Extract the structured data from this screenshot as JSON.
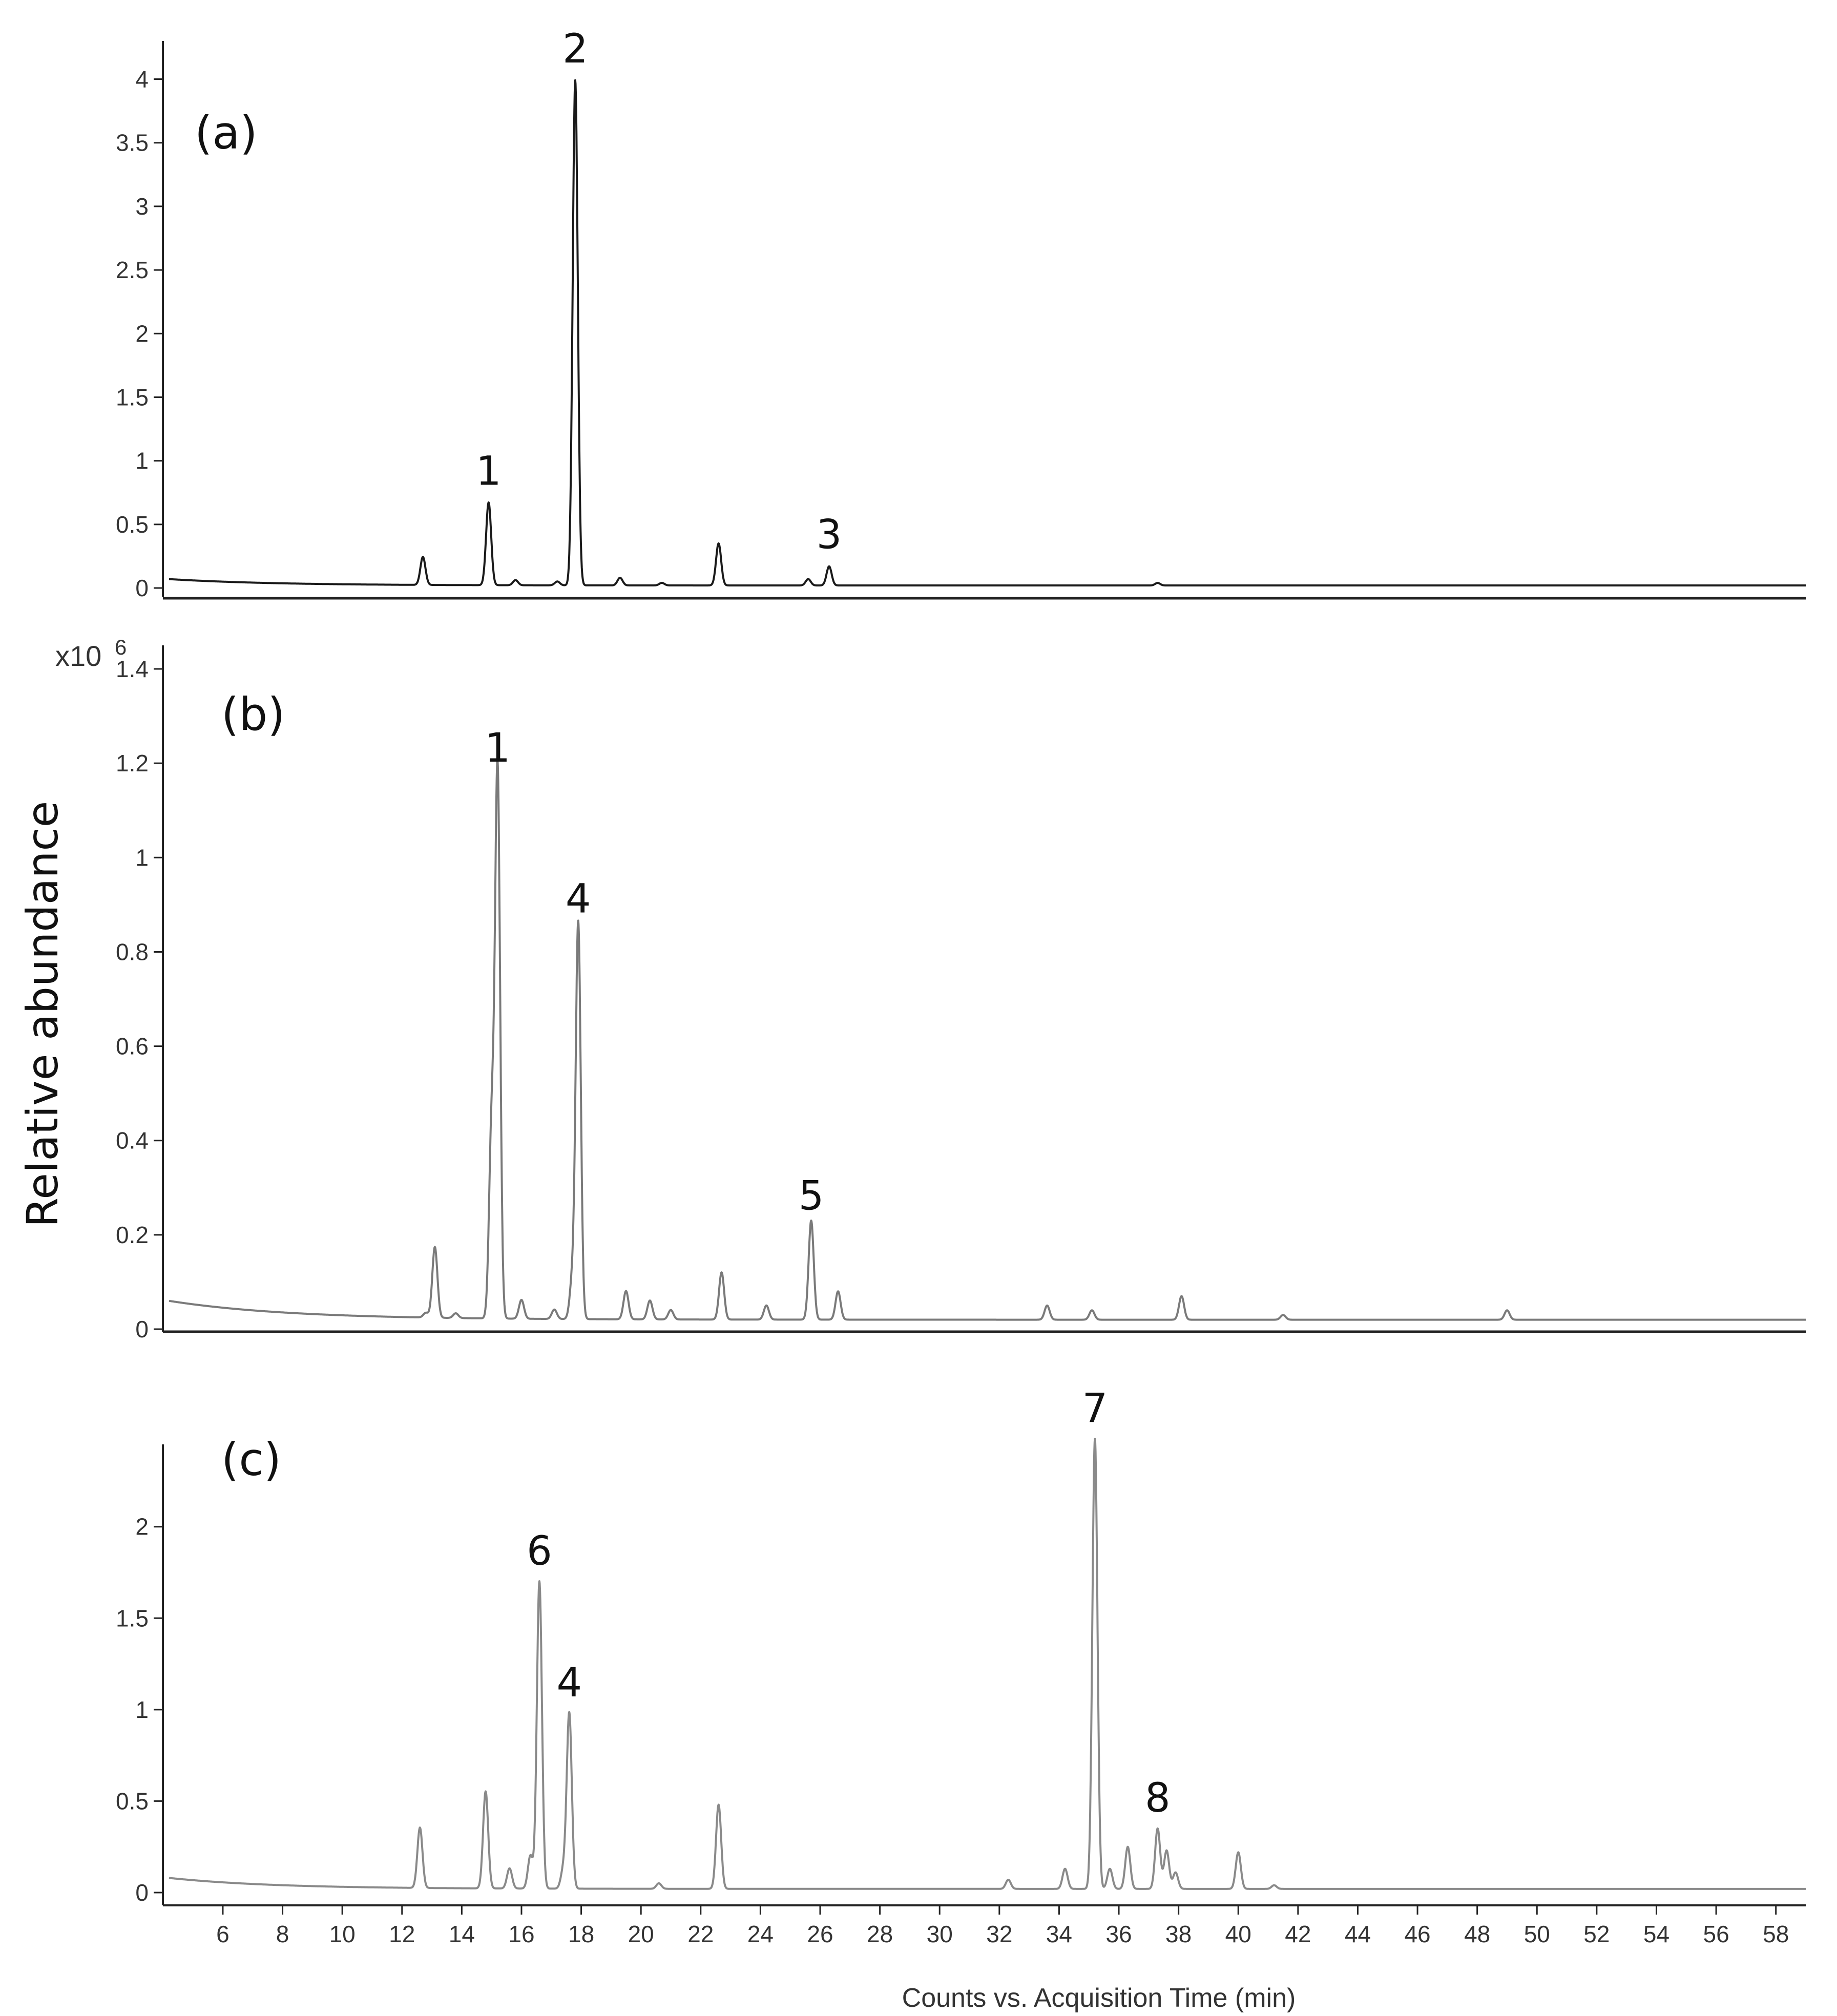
{
  "figure": {
    "ylabel": "Relative abundance",
    "xlabel": "Counts vs. Acquisition Time (min)",
    "multiplier": {
      "base": "x10",
      "exponent": "6"
    }
  },
  "chart_data": [
    {
      "panel": "(a)",
      "type": "line",
      "color": "#1a1a1a",
      "xlim": [
        4.2,
        59
      ],
      "ylim": [
        0,
        4.3
      ],
      "yticks": [
        0,
        0.5,
        1,
        1.5,
        2,
        2.5,
        3,
        3.5,
        4
      ],
      "ytick_labels": [
        "0",
        "0.5",
        "1",
        "1.5",
        "2",
        "2.5",
        "3",
        "3.5",
        "4"
      ],
      "baseline": {
        "start": 0.07,
        "floor": 0.02,
        "decay": 3.5
      },
      "peaks": [
        {
          "x": 12.7,
          "y": 0.22,
          "label": ""
        },
        {
          "x": 14.9,
          "y": 0.65,
          "label": "1"
        },
        {
          "x": 15.8,
          "y": 0.04,
          "label": ""
        },
        {
          "x": 17.2,
          "y": 0.03,
          "label": ""
        },
        {
          "x": 17.8,
          "y": 3.97,
          "label": "2"
        },
        {
          "x": 19.3,
          "y": 0.06,
          "label": ""
        },
        {
          "x": 20.7,
          "y": 0.02,
          "label": ""
        },
        {
          "x": 22.6,
          "y": 0.33,
          "label": ""
        },
        {
          "x": 25.6,
          "y": 0.05,
          "label": ""
        },
        {
          "x": 26.3,
          "y": 0.15,
          "label": "3"
        },
        {
          "x": 37.3,
          "y": 0.02,
          "label": ""
        }
      ]
    },
    {
      "panel": "(b)",
      "type": "line",
      "color": "#7a7a7a",
      "xlim": [
        4.2,
        59
      ],
      "ylim": [
        0,
        1.45
      ],
      "yticks": [
        0,
        0.2,
        0.4,
        0.6,
        0.8,
        1,
        1.2,
        1.4
      ],
      "ytick_labels": [
        "0",
        "0.2",
        "0.4",
        "0.6",
        "0.8",
        "1",
        "1.2",
        "1.4"
      ],
      "baseline": {
        "start": 0.06,
        "floor": 0.02,
        "decay": 4.0
      },
      "peaks": [
        {
          "x": 12.8,
          "y": 0.01,
          "label": ""
        },
        {
          "x": 13.1,
          "y": 0.15,
          "label": ""
        },
        {
          "x": 13.8,
          "y": 0.01,
          "label": ""
        },
        {
          "x": 15.0,
          "y": 0.4,
          "label": ""
        },
        {
          "x": 15.2,
          "y": 1.16,
          "label": "1"
        },
        {
          "x": 16.0,
          "y": 0.04,
          "label": ""
        },
        {
          "x": 17.1,
          "y": 0.02,
          "label": ""
        },
        {
          "x": 17.9,
          "y": 0.84,
          "label": "4"
        },
        {
          "x": 17.7,
          "y": 0.08,
          "label": ""
        },
        {
          "x": 19.5,
          "y": 0.06,
          "label": ""
        },
        {
          "x": 20.3,
          "y": 0.04,
          "label": ""
        },
        {
          "x": 21.0,
          "y": 0.02,
          "label": ""
        },
        {
          "x": 22.7,
          "y": 0.1,
          "label": ""
        },
        {
          "x": 24.2,
          "y": 0.03,
          "label": ""
        },
        {
          "x": 25.7,
          "y": 0.21,
          "label": "5"
        },
        {
          "x": 26.6,
          "y": 0.06,
          "label": ""
        },
        {
          "x": 33.6,
          "y": 0.03,
          "label": ""
        },
        {
          "x": 35.1,
          "y": 0.02,
          "label": ""
        },
        {
          "x": 38.1,
          "y": 0.05,
          "label": ""
        },
        {
          "x": 41.5,
          "y": 0.01,
          "label": ""
        },
        {
          "x": 49.0,
          "y": 0.02,
          "label": ""
        }
      ]
    },
    {
      "panel": "(c)",
      "type": "line",
      "color": "#8a8a8a",
      "xlim": [
        4.2,
        59
      ],
      "ylim": [
        -0.05,
        2.45
      ],
      "yticks": [
        0,
        0.5,
        1,
        1.5,
        2
      ],
      "ytick_labels": [
        "0",
        "0.5",
        "1",
        "1.5",
        "2"
      ],
      "xticks": [
        6,
        8,
        10,
        12,
        14,
        16,
        18,
        20,
        22,
        24,
        26,
        28,
        30,
        32,
        34,
        36,
        38,
        40,
        42,
        44,
        46,
        48,
        50,
        52,
        54,
        56,
        58
      ],
      "xtick_labels": [
        "6",
        "8",
        "10",
        "12",
        "14",
        "16",
        "18",
        "20",
        "22",
        "24",
        "26",
        "28",
        "30",
        "32",
        "34",
        "36",
        "38",
        "40",
        "42",
        "44",
        "46",
        "48",
        "50",
        "52",
        "54",
        "56",
        "58"
      ],
      "baseline": {
        "start": 0.08,
        "floor": 0.02,
        "decay": 3.5
      },
      "peaks": [
        {
          "x": 12.6,
          "y": 0.33,
          "label": ""
        },
        {
          "x": 14.8,
          "y": 0.53,
          "label": ""
        },
        {
          "x": 15.6,
          "y": 0.11,
          "label": ""
        },
        {
          "x": 16.3,
          "y": 0.18,
          "label": ""
        },
        {
          "x": 16.6,
          "y": 1.68,
          "label": "6"
        },
        {
          "x": 17.4,
          "y": 0.1,
          "label": ""
        },
        {
          "x": 17.6,
          "y": 0.96,
          "label": "4"
        },
        {
          "x": 20.6,
          "y": 0.03,
          "label": ""
        },
        {
          "x": 22.6,
          "y": 0.46,
          "label": ""
        },
        {
          "x": 32.3,
          "y": 0.05,
          "label": ""
        },
        {
          "x": 34.2,
          "y": 0.11,
          "label": ""
        },
        {
          "x": 35.2,
          "y": 2.46,
          "label": "7"
        },
        {
          "x": 35.7,
          "y": 0.11,
          "label": ""
        },
        {
          "x": 36.3,
          "y": 0.23,
          "label": ""
        },
        {
          "x": 37.3,
          "y": 0.33,
          "label": "8"
        },
        {
          "x": 37.6,
          "y": 0.21,
          "label": ""
        },
        {
          "x": 37.9,
          "y": 0.09,
          "label": ""
        },
        {
          "x": 40.0,
          "y": 0.2,
          "label": ""
        },
        {
          "x": 41.2,
          "y": 0.02,
          "label": ""
        }
      ]
    }
  ]
}
